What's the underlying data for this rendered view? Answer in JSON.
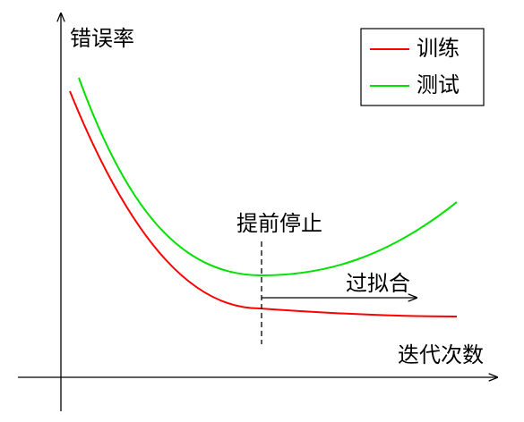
{
  "axes": {
    "y_label": "错误率",
    "x_label": "迭代次数"
  },
  "legend": [
    {
      "label": "训练",
      "color": "#ff0000"
    },
    {
      "label": "测试",
      "color": "#00e000"
    }
  ],
  "annotations": {
    "early_stop": "提前停止",
    "overfit": "过拟合"
  }
}
